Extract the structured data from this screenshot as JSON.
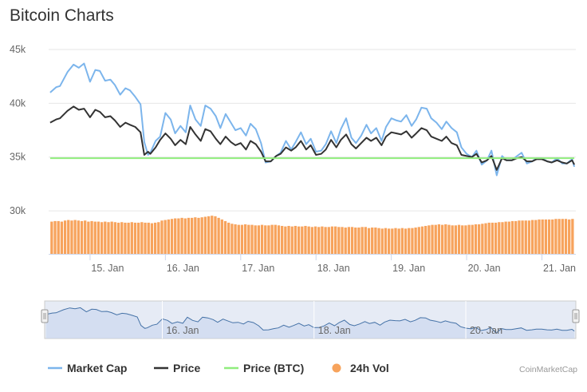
{
  "title": "Bitcoin Charts",
  "credit": "CoinMarketCap",
  "colors": {
    "market_cap": "#7cb5ec",
    "price": "#333333",
    "price_btc": "#90ed7d",
    "vol": "#f7a35c",
    "navigator_fill": "#e6ebf5",
    "navigator_line": "#4572a7"
  },
  "chart_data": {
    "type": "line",
    "title": "Bitcoin Charts",
    "x_range": [
      14.45,
      21.45
    ],
    "ylim": [
      26000,
      45000
    ],
    "y_ticks": [
      {
        "value": 30000,
        "label": "30k"
      },
      {
        "value": 35000,
        "label": "35k"
      },
      {
        "value": 40000,
        "label": "40k"
      },
      {
        "value": 45000,
        "label": "45k"
      }
    ],
    "x_ticks": [
      {
        "value": 15,
        "label": "15. Jan"
      },
      {
        "value": 16,
        "label": "16. Jan"
      },
      {
        "value": 17,
        "label": "17. Jan"
      },
      {
        "value": 18,
        "label": "18. Jan"
      },
      {
        "value": 19,
        "label": "19. Jan"
      },
      {
        "value": 20,
        "label": "20. Jan"
      },
      {
        "value": 21,
        "label": "21. Jan"
      }
    ],
    "navigator_ticks": [
      {
        "value": 16,
        "label": "16. Jan"
      },
      {
        "value": 18,
        "label": "18. Jan"
      },
      {
        "value": 20,
        "label": "20. Jan"
      }
    ],
    "grid": true,
    "legend_position": "bottom",
    "series": [
      {
        "name": "Market Cap",
        "kind": "line",
        "x": [
          14.47,
          14.55,
          14.6,
          14.7,
          14.78,
          14.85,
          14.92,
          15.0,
          15.07,
          15.13,
          15.2,
          15.27,
          15.33,
          15.4,
          15.47,
          15.53,
          15.6,
          15.67,
          15.72,
          15.77,
          15.8,
          15.87,
          15.93,
          16.0,
          16.07,
          16.13,
          16.2,
          16.27,
          16.33,
          16.4,
          16.47,
          16.53,
          16.6,
          16.67,
          16.73,
          16.8,
          16.87,
          16.93,
          17.0,
          17.07,
          17.13,
          17.2,
          17.27,
          17.33,
          17.4,
          17.47,
          17.53,
          17.6,
          17.67,
          17.73,
          17.8,
          17.87,
          17.93,
          18.0,
          18.07,
          18.13,
          18.2,
          18.27,
          18.33,
          18.4,
          18.47,
          18.53,
          18.6,
          18.67,
          18.73,
          18.8,
          18.87,
          18.93,
          19.0,
          19.07,
          19.13,
          19.2,
          19.27,
          19.33,
          19.4,
          19.47,
          19.53,
          19.6,
          19.67,
          19.73,
          19.8,
          19.87,
          19.93,
          20.0,
          20.07,
          20.13,
          20.2,
          20.27,
          20.33,
          20.4,
          20.47,
          20.53,
          20.6,
          20.67,
          20.73,
          20.8,
          20.87,
          20.93,
          21.0,
          21.07,
          21.13,
          21.2,
          21.27,
          21.33,
          21.4,
          21.43
        ],
        "values": [
          41000,
          41500,
          41600,
          42900,
          43600,
          43300,
          43700,
          42000,
          43100,
          43000,
          42100,
          42200,
          41700,
          40800,
          41400,
          41200,
          40600,
          39900,
          36400,
          35200,
          35400,
          36500,
          36900,
          39100,
          38500,
          37200,
          37900,
          37300,
          39800,
          38500,
          37900,
          39800,
          39500,
          38800,
          37700,
          39000,
          38200,
          37500,
          37700,
          37000,
          38100,
          37600,
          36300,
          34500,
          34600,
          35100,
          35400,
          36500,
          35700,
          36400,
          37300,
          36200,
          36700,
          35500,
          35600,
          36200,
          37400,
          36300,
          37600,
          38600,
          36800,
          36300,
          37000,
          38000,
          37200,
          37700,
          36500,
          37800,
          38600,
          38400,
          38300,
          38900,
          37900,
          38500,
          39600,
          39500,
          38600,
          38200,
          37600,
          38300,
          37700,
          37300,
          35900,
          35300,
          35000,
          35600,
          34300,
          34700,
          35600,
          33300,
          35100,
          34700,
          34700,
          35100,
          35400,
          34400,
          34600,
          34900,
          34900,
          34600,
          34500,
          34900,
          34400,
          34400,
          34800,
          34100
        ]
      },
      {
        "name": "Price",
        "kind": "line",
        "x": [
          14.47,
          14.55,
          14.6,
          14.7,
          14.78,
          14.85,
          14.92,
          15.0,
          15.07,
          15.13,
          15.2,
          15.27,
          15.33,
          15.4,
          15.47,
          15.53,
          15.6,
          15.67,
          15.72,
          15.77,
          15.8,
          15.87,
          15.93,
          16.0,
          16.07,
          16.13,
          16.2,
          16.27,
          16.33,
          16.4,
          16.47,
          16.53,
          16.6,
          16.67,
          16.73,
          16.8,
          16.87,
          16.93,
          17.0,
          17.07,
          17.13,
          17.2,
          17.27,
          17.33,
          17.4,
          17.47,
          17.53,
          17.6,
          17.67,
          17.73,
          17.8,
          17.87,
          17.93,
          18.0,
          18.07,
          18.13,
          18.2,
          18.27,
          18.33,
          18.4,
          18.47,
          18.53,
          18.6,
          18.67,
          18.73,
          18.8,
          18.87,
          18.93,
          19.0,
          19.07,
          19.13,
          19.2,
          19.27,
          19.33,
          19.4,
          19.47,
          19.53,
          19.6,
          19.67,
          19.73,
          19.8,
          19.87,
          19.93,
          20.0,
          20.07,
          20.13,
          20.2,
          20.27,
          20.33,
          20.4,
          20.47,
          20.53,
          20.6,
          20.67,
          20.73,
          20.8,
          20.87,
          20.93,
          21.0,
          21.07,
          21.13,
          21.2,
          21.27,
          21.33,
          21.4,
          21.43
        ],
        "values": [
          38200,
          38500,
          38600,
          39300,
          39700,
          39400,
          39500,
          38700,
          39400,
          39200,
          38700,
          38800,
          38400,
          37800,
          38200,
          38000,
          37800,
          37300,
          35200,
          35500,
          35300,
          35900,
          36600,
          37200,
          36700,
          36100,
          36600,
          36200,
          37800,
          37100,
          36500,
          37600,
          37400,
          36700,
          36200,
          36900,
          36400,
          36100,
          36300,
          35700,
          36500,
          36200,
          35500,
          34600,
          34600,
          35100,
          35300,
          35900,
          35600,
          35900,
          36500,
          35700,
          36100,
          35200,
          35300,
          35700,
          36600,
          35900,
          36600,
          37100,
          36200,
          35800,
          36300,
          36800,
          36500,
          36800,
          36100,
          36900,
          37300,
          37200,
          37100,
          37400,
          36800,
          37200,
          37700,
          37500,
          36900,
          36700,
          36500,
          36900,
          36300,
          36100,
          35200,
          35100,
          35000,
          35300,
          34500,
          34700,
          35100,
          33800,
          34900,
          34700,
          34700,
          34900,
          35000,
          34600,
          34600,
          34800,
          34800,
          34600,
          34500,
          34700,
          34500,
          34400,
          34700,
          34300
        ]
      },
      {
        "name": "Price (BTC)",
        "kind": "line",
        "x": [
          14.47,
          21.43
        ],
        "values": [
          34900,
          34900
        ]
      },
      {
        "name": "24h Vol",
        "kind": "bar",
        "x_start": 14.47,
        "x_end": 21.43,
        "values": [
          29000,
          29050,
          29050,
          29000,
          29100,
          29150,
          29100,
          29150,
          29100,
          29050,
          29100,
          29000,
          29050,
          29000,
          29000,
          28950,
          29000,
          28950,
          29000,
          28950,
          28900,
          28950,
          28900,
          28900,
          28950,
          28900,
          28900,
          28950,
          28900,
          28900,
          28850,
          28900,
          28950,
          29100,
          29150,
          29200,
          29250,
          29300,
          29300,
          29350,
          29300,
          29350,
          29350,
          29400,
          29350,
          29400,
          29450,
          29500,
          29550,
          29500,
          29350,
          29200,
          29050,
          28900,
          28800,
          28750,
          28700,
          28700,
          28750,
          28700,
          28700,
          28650,
          28650,
          28700,
          28650,
          28650,
          28700,
          28700,
          28650,
          28600,
          28550,
          28600,
          28550,
          28600,
          28550,
          28550,
          28600,
          28550,
          28500,
          28550,
          28500,
          28550,
          28500,
          28500,
          28550,
          28550,
          28500,
          28500,
          28450,
          28500,
          28500,
          28450,
          28450,
          28500,
          28500,
          28400,
          28450,
          28450,
          28400,
          28350,
          28400,
          28350,
          28350,
          28400,
          28350,
          28400,
          28350,
          28400,
          28400,
          28450,
          28500,
          28550,
          28600,
          28650,
          28700,
          28700,
          28750,
          28700,
          28750,
          28700,
          28650,
          28650,
          28700,
          28650,
          28650,
          28700,
          28700,
          28750,
          28750,
          28800,
          28850,
          28900,
          28900,
          28900,
          28950,
          28950,
          29000,
          29000,
          29050,
          29050,
          29100,
          29100,
          29100,
          29100,
          29150,
          29150,
          29200,
          29200,
          29200,
          29200,
          29200,
          29250,
          29250,
          29250,
          29250,
          29200,
          29250
        ]
      }
    ]
  },
  "legend": [
    {
      "label": "Market Cap",
      "key": "market_cap",
      "symbol": "line"
    },
    {
      "label": "Price",
      "key": "price",
      "symbol": "line"
    },
    {
      "label": "Price (BTC)",
      "key": "price_btc",
      "symbol": "line"
    },
    {
      "label": "24h Vol",
      "key": "vol",
      "symbol": "dot"
    }
  ]
}
